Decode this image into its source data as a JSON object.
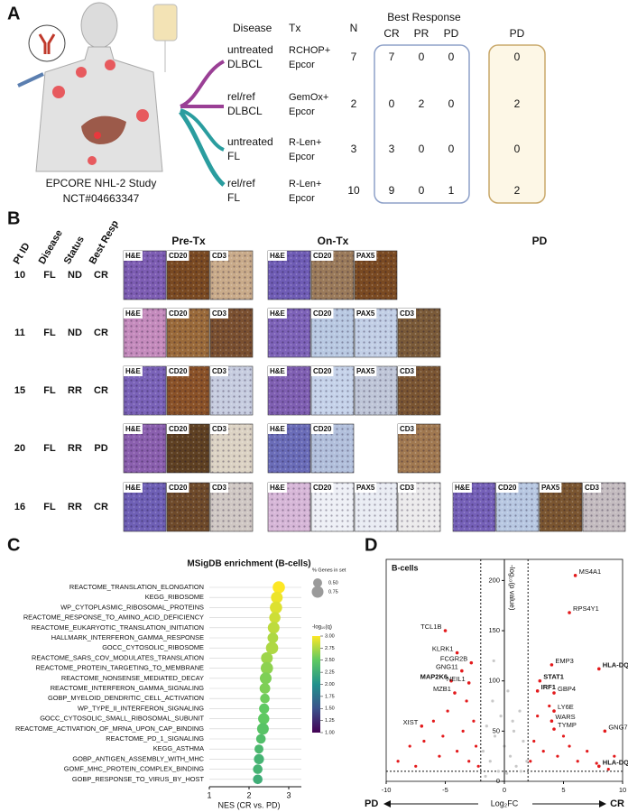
{
  "panel_labels": [
    "A",
    "B",
    "C",
    "D"
  ],
  "panel_a": {
    "study": [
      "EPCORE NHL-2 Study",
      "NCT#04663347"
    ],
    "headers": {
      "disease": "Disease",
      "tx": "Tx",
      "n": "N",
      "best_response": "Best Response",
      "pd": "PD"
    },
    "response_cols": [
      "CR",
      "PR",
      "PD"
    ],
    "rows": [
      {
        "disease": [
          "untreated",
          "DLBCL"
        ],
        "tx": [
          "RCHOP+",
          "Epcor"
        ],
        "n": 7,
        "best": [
          7,
          0,
          0
        ],
        "pd": 0,
        "color": "#9a3f95"
      },
      {
        "disease": [
          "rel/ref",
          "DLBCL"
        ],
        "tx": [
          "GemOx+",
          "Epcor"
        ],
        "n": 2,
        "best": [
          0,
          2,
          0
        ],
        "pd": 2,
        "color": "#9a3f95"
      },
      {
        "disease": [
          "untreated",
          "FL"
        ],
        "tx": [
          "R-Len+",
          "Epcor"
        ],
        "n": 3,
        "best": [
          3,
          0,
          0
        ],
        "pd": 0,
        "color": "#2a9d9f"
      },
      {
        "disease": [
          "rel/ref",
          "FL"
        ],
        "tx": [
          "R-Len+",
          "Epcor"
        ],
        "n": 10,
        "best": [
          9,
          0,
          1
        ],
        "pd": 2,
        "color": "#2a9d9f"
      }
    ]
  },
  "panel_b": {
    "headers": [
      "Pt ID",
      "Disease",
      "Status",
      "Best Resp"
    ],
    "phases": [
      "Pre-Tx",
      "On-Tx",
      "PD"
    ],
    "rows": [
      {
        "pt": 10,
        "disease": "FL",
        "status": "ND",
        "resp": "CR",
        "tiles": [
          [
            {
              "label": "H&E",
              "color": "#7d5db3"
            },
            {
              "label": "CD20",
              "color": "#7a4a22"
            },
            {
              "label": "CD3",
              "color": "#c9ab8a"
            }
          ],
          [
            {
              "label": "H&E",
              "color": "#6f5cb5"
            },
            {
              "label": "CD20",
              "color": "#9a7a5a"
            },
            {
              "label": "PAX5",
              "color": "#7a4a22"
            }
          ],
          []
        ]
      },
      {
        "pt": 11,
        "disease": "FL",
        "status": "ND",
        "resp": "CR",
        "tiles": [
          [
            {
              "label": "H&E",
              "color": "#c58bbd"
            },
            {
              "label": "CD20",
              "color": "#9a6a3a"
            },
            {
              "label": "CD3",
              "color": "#7a5030"
            }
          ],
          [
            {
              "label": "H&E",
              "color": "#7d62b8"
            },
            {
              "label": "CD20",
              "color": "#b9c9e2"
            },
            {
              "label": "PAX5",
              "color": "#c2cfe6"
            },
            {
              "label": "CD3",
              "color": "#7a5a38"
            }
          ],
          []
        ]
      },
      {
        "pt": 15,
        "disease": "FL",
        "status": "RR",
        "resp": "CR",
        "tiles": [
          [
            {
              "label": "H&E",
              "color": "#7a62b8"
            },
            {
              "label": "CD20",
              "color": "#8a5228"
            },
            {
              "label": "CD3",
              "color": "#c7cde0"
            }
          ],
          [
            {
              "label": "H&E",
              "color": "#7f5fb2"
            },
            {
              "label": "CD20",
              "color": "#c6d3ea"
            },
            {
              "label": "PAX5",
              "color": "#bfc6d8"
            },
            {
              "label": "CD3",
              "color": "#7a5532"
            }
          ],
          []
        ]
      },
      {
        "pt": 20,
        "disease": "FL",
        "status": "RR",
        "resp": "PD",
        "tiles": [
          [
            {
              "label": "H&E",
              "color": "#8a5fae"
            },
            {
              "label": "CD20",
              "color": "#5e4022"
            },
            {
              "label": "CD3",
              "color": "#dcd3c4"
            }
          ],
          [
            {
              "label": "H&E",
              "color": "#6a6cb8"
            },
            {
              "label": "CD20",
              "color": "#b2c0dc"
            },
            null,
            {
              "label": "CD3",
              "color": "#a07850"
            }
          ],
          []
        ]
      },
      {
        "pt": 16,
        "disease": "FL",
        "status": "RR",
        "resp": "CR",
        "tiles": [
          [
            {
              "label": "H&E",
              "color": "#6e5fb5"
            },
            {
              "label": "CD20",
              "color": "#6e4a2a"
            },
            {
              "label": "CD3",
              "color": "#d0c8c4"
            }
          ],
          [
            {
              "label": "H&E",
              "color": "#d7b7d8"
            },
            {
              "label": "CD20",
              "color": "#eef0f6"
            },
            {
              "label": "PAX5",
              "color": "#e9ecf3"
            },
            {
              "label": "CD3",
              "color": "#ecebec"
            }
          ],
          [
            {
              "label": "H&E",
              "color": "#7560b8"
            },
            {
              "label": "CD20",
              "color": "#b8c8e2"
            },
            {
              "label": "PAX5",
              "color": "#7a5530"
            },
            {
              "label": "CD3",
              "color": "#c4bcc0"
            }
          ]
        ]
      }
    ]
  },
  "chart_data": [
    {
      "type": "dot",
      "title": "MSigDB enrichment (B-cells)",
      "xlabel": "NES (CR vs. PD)",
      "categories": [
        "REACTOME_TRANSLATION_ELONGATION",
        "KEGG_RIBOSOME",
        "WP_CYTOPLASMIC_RIBOSOMAL_PROTEINS",
        "REACTOME_RESPONSE_TO_AMINO_ACID_DEFICIENCY",
        "REACTOME_EUKARYOTIC_TRANSLATION_INITIATION",
        "HALLMARK_INTERFERON_GAMMA_RESPONSE",
        "GOCC_CYTOSOLIC_RIBOSOME",
        "REACTOME_SARS_COV_MODULATES_TRANSLATION",
        "REACTOME_PROTEIN_TARGETING_TO_MEMBRANE",
        "REACTOME_NONSENSE_MEDIATED_DECAY",
        "REACTOME_INTERFERON_GAMMA_SIGNALING",
        "GOBP_MYELOID_DENDRITIC_CELL_ACTIVATION",
        "WP_TYPE_II_INTERFERON_SIGNALING",
        "GOCC_CYTOSOLIC_SMALL_RIBOSOMAL_SUBUNIT",
        "REACTOME_ACTIVATION_OF_MRNA_UPON_CAP_BINDING",
        "REACTOME_PD_1_SIGNALING",
        "KEGG_ASTHMA",
        "GOBP_ANTIGEN_ASSEMBLY_WITH_MHC",
        "GOMF_MHC_PROTEIN_COMPLEX_BINDING",
        "GOBP_RESPONSE_TO_VIRUS_BY_HOST"
      ],
      "label_colors": [
        "#e31a1c",
        "#e31a1c",
        "#e31a1c",
        "#e31a1c",
        "#e31a1c",
        "#2b3fa8",
        "#e31a1c",
        "#e31a1c",
        "#2ca02c",
        "#e31a1c",
        "#2b3fa8",
        "#2ca02c",
        "#2b3fa8",
        "#e31a1c",
        "#e31a1c",
        "#2b3fa8",
        "#2b3fa8",
        "#2ca02c",
        "#2ca02c",
        "#2ca02c"
      ],
      "values": [
        2.75,
        2.7,
        2.68,
        2.65,
        2.62,
        2.6,
        2.58,
        2.45,
        2.45,
        2.42,
        2.4,
        2.4,
        2.38,
        2.37,
        2.35,
        2.3,
        2.25,
        2.25,
        2.22,
        2.22
      ],
      "sizes": [
        0.8,
        0.75,
        0.8,
        0.7,
        0.75,
        0.65,
        0.8,
        0.75,
        0.8,
        0.75,
        0.65,
        0.55,
        0.6,
        0.7,
        0.75,
        0.55,
        0.5,
        0.6,
        0.55,
        0.55
      ],
      "q": [
        3.0,
        2.95,
        2.9,
        2.85,
        2.8,
        2.75,
        2.75,
        2.7,
        2.65,
        2.6,
        2.6,
        2.55,
        2.5,
        2.5,
        2.45,
        2.4,
        2.35,
        2.3,
        2.3,
        2.25
      ],
      "xlim": [
        1,
        3
      ],
      "xticks": [
        1,
        2,
        3
      ],
      "size_legend": {
        "title": "% Genes in set",
        "items": [
          {
            "value": 0.5,
            "label": "0.50"
          },
          {
            "value": 0.75,
            "label": "0.75"
          }
        ]
      },
      "color_legend": {
        "title": "-log₁₀(q)",
        "clim": [
          1,
          3
        ],
        "ticks": [
          {
            "value": 1,
            "label": "1.00"
          },
          {
            "value": 1.25,
            "label": "1.25"
          },
          {
            "value": 1.5,
            "label": "1.50"
          },
          {
            "value": 1.75,
            "label": "1.75"
          },
          {
            "value": 2,
            "label": "2.00"
          },
          {
            "value": 2.25,
            "label": "2.25"
          },
          {
            "value": 2.5,
            "label": "2.50"
          },
          {
            "value": 2.75,
            "label": "2.75"
          },
          {
            "value": 3,
            "label": "3.00"
          }
        ]
      }
    },
    {
      "type": "scatter",
      "title": "B-cells",
      "xlabel": "Log₂FC",
      "ylabel": "-log₁₀(p value)",
      "left_label": "PD",
      "right_label": "CR",
      "xlim": [
        -10,
        10
      ],
      "ylim": [
        0,
        230
      ],
      "xticks": [
        -10,
        -5,
        0,
        5,
        10
      ],
      "yticks": [
        0,
        50,
        100,
        150,
        200
      ],
      "xlines": [
        -2,
        2
      ],
      "ylines": [
        10
      ],
      "genes": {
        "labels": [
          "MS4A1",
          "RPS4Y1",
          "TCL1B",
          "KLRK1",
          "FCGR2B",
          "GNG11",
          "MAP2K6",
          "NEIL1",
          "MZB1",
          "XIST",
          "EMP3",
          "HLA-DQA2",
          "STAT1",
          "IRF1",
          "GBP4",
          "LY6E",
          "WARS",
          "TYMP",
          "GNG7",
          "HLA-DQB2"
        ],
        "x": [
          6,
          5.5,
          -5,
          -4,
          -2.8,
          -3.6,
          -4.5,
          -3,
          -4.2,
          -7,
          4,
          8,
          3,
          2.8,
          4.2,
          4.2,
          4,
          4.2,
          8.5,
          8
        ],
        "y": [
          205,
          168,
          150,
          128,
          118,
          110,
          100,
          98,
          88,
          55,
          116,
          112,
          100,
          90,
          88,
          70,
          60,
          52,
          50,
          15
        ],
        "label_colors": [
          "#111111",
          "#111111",
          "#111111",
          "#111111",
          "#111111",
          "#111111",
          "#e31a1c",
          "#111111",
          "#111111",
          "#111111",
          "#111111",
          "#e31a1c",
          "#e31a1c",
          "#e31a1c",
          "#111111",
          "#111111",
          "#111111",
          "#111111",
          "#111111",
          "#e31a1c"
        ],
        "color": "#e31a1c"
      },
      "significant": {
        "x": [
          -9,
          -8,
          -7.5,
          -6.8,
          -6,
          -5.5,
          -5.2,
          -4.8,
          -4,
          -3.5,
          -3.2,
          -3,
          -2.6,
          -2.4,
          -2.2,
          2.2,
          2.5,
          2.8,
          3.3,
          3.8,
          4.5,
          5,
          5.5,
          6.2,
          7,
          7.8,
          8.8,
          9.3
        ],
        "y": [
          20,
          35,
          15,
          40,
          60,
          25,
          45,
          70,
          30,
          50,
          80,
          20,
          60,
          35,
          15,
          20,
          40,
          65,
          30,
          75,
          25,
          45,
          35,
          20,
          30,
          18,
          12,
          25
        ],
        "color": "#e31a1c"
      },
      "nonsignificant": {
        "x": [
          -1.8,
          -1.5,
          -1.2,
          -1,
          -0.8,
          -0.5,
          -0.3,
          0,
          0.3,
          0.5,
          0.8,
          1,
          1.3,
          1.6,
          1.9,
          -1.6,
          -0.9,
          0.2,
          0.7,
          1.4
        ],
        "y": [
          30,
          55,
          20,
          80,
          45,
          10,
          65,
          35,
          90,
          25,
          50,
          15,
          70,
          40,
          20,
          5,
          120,
          8,
          60,
          10
        ],
        "color": "#c8c8c8"
      }
    }
  ]
}
